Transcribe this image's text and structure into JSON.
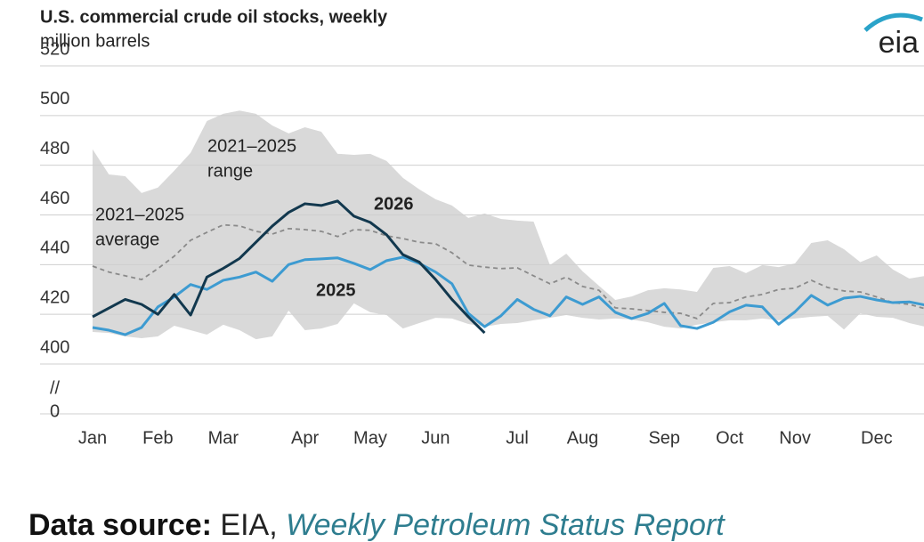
{
  "chart_data": {
    "type": "line",
    "title": "U.S. commercial crude oil stocks, weekly",
    "subtitle": "million barrels",
    "logo": "eia",
    "categories": [
      "Jan",
      null,
      null,
      null,
      "Feb",
      null,
      null,
      null,
      "Mar",
      null,
      null,
      null,
      null,
      "Apr",
      null,
      null,
      null,
      "May",
      null,
      null,
      null,
      "Jun",
      null,
      null,
      null,
      null,
      "Jul",
      null,
      null,
      null,
      "Aug",
      null,
      null,
      null,
      null,
      "Sep",
      null,
      null,
      null,
      "Oct",
      null,
      null,
      null,
      "Nov",
      null,
      null,
      null,
      null,
      "Dec",
      null,
      null,
      null
    ],
    "ylim": [
      400,
      520
    ],
    "yticks": [
      400,
      420,
      440,
      460,
      480,
      500,
      520
    ],
    "baseline_tick": 0,
    "break_symbol": "//",
    "grid": true,
    "range": {
      "label": [
        "2021–2025",
        "range"
      ],
      "color": "#d9d9d9",
      "label_color": "#777777",
      "upper": [
        486.4,
        476.3,
        475.6,
        468.8,
        471,
        477.8,
        485,
        497.8,
        500.7,
        502,
        500.7,
        496,
        492.8,
        495.3,
        493.5,
        484.6,
        484.2,
        484.6,
        481.7,
        474.9,
        470.3,
        466.3,
        463.8,
        458.8,
        460.6,
        458.4,
        457.7,
        457.3,
        439.8,
        444.4,
        437.3,
        431.5,
        425.8,
        427.2,
        429.7,
        430.5,
        430,
        429,
        438.7,
        439.4,
        436.6,
        439.8,
        439,
        440.5,
        448.7,
        449.8,
        446.2,
        441,
        443.7,
        438,
        434.4,
        435.5
      ],
      "lower": [
        412.9,
        412.5,
        411.1,
        410.4,
        411.1,
        415.4,
        413.6,
        411.8,
        415.8,
        413.6,
        410,
        411.1,
        421.5,
        413.6,
        414.3,
        416.1,
        424.4,
        420.8,
        419.7,
        414.3,
        416.5,
        418.6,
        418.3,
        416.1,
        415,
        416.1,
        416.5,
        417.6,
        418.6,
        419.7,
        418.6,
        417.9,
        418.3,
        417.9,
        416.8,
        415,
        414.3,
        415.8,
        416.8,
        417.6,
        417.6,
        418.3,
        417.6,
        418.3,
        419,
        419.4,
        413.9,
        420.4,
        419,
        418.6,
        416.5,
        415
      ]
    },
    "series": [
      {
        "label": [
          "2021–2025",
          "average"
        ],
        "color": "#8a8a8a",
        "dashed": true,
        "label_bold": false,
        "values": [
          439.4,
          437,
          435.5,
          434,
          438.4,
          443.4,
          449.8,
          453,
          456,
          455.6,
          453.4,
          452.3,
          454.5,
          454.1,
          453.4,
          451.3,
          454.1,
          453.8,
          451.6,
          450.5,
          449,
          448.4,
          444.8,
          439.8,
          439,
          438.4,
          438.7,
          435.5,
          432.3,
          435,
          431.2,
          429.7,
          422.6,
          422.2,
          421.5,
          420.8,
          420.4,
          418.3,
          424.4,
          424.7,
          427,
          428,
          430,
          430.5,
          433.7,
          430.8,
          429.4,
          429,
          427,
          424.7,
          424,
          422.2
        ]
      },
      {
        "label": [
          "2025"
        ],
        "color": "#3d9bd1",
        "dashed": false,
        "label_bold": true,
        "values": [
          414.7,
          413.6,
          411.8,
          414.7,
          423,
          427,
          432,
          430,
          433.7,
          435,
          437,
          433.3,
          440,
          442,
          442.3,
          442.7,
          440.5,
          438,
          441.6,
          443,
          440.5,
          437,
          432.3,
          420.4,
          415,
          419.4,
          426,
          422,
          419.4,
          427,
          424,
          427,
          420.8,
          418.3,
          420.4,
          424.4,
          415.4,
          414.3,
          416.8,
          421,
          423.7,
          423,
          416,
          421,
          427.6,
          423.7,
          426.5,
          427.2,
          425.8,
          424.7,
          425,
          423.7
        ]
      },
      {
        "label": [
          "2026"
        ],
        "color": "#12384e",
        "dashed": false,
        "label_bold": true,
        "values": [
          419,
          422.5,
          426,
          424,
          420,
          428,
          419.7,
          435,
          438.5,
          442.5,
          449,
          455.5,
          461,
          464.5,
          463.8,
          465.6,
          459.5,
          457,
          452,
          444,
          441,
          434,
          426,
          419,
          412.5,
          null,
          null,
          null,
          null,
          null,
          null,
          null,
          null,
          null,
          null,
          null,
          null,
          null,
          null,
          null,
          null,
          null,
          null,
          null,
          null,
          null,
          null,
          null,
          null,
          null,
          null,
          null
        ]
      }
    ]
  },
  "source": {
    "label": "Data source:",
    "publisher": "EIA,",
    "report": "Weekly Petroleum Status Report"
  }
}
